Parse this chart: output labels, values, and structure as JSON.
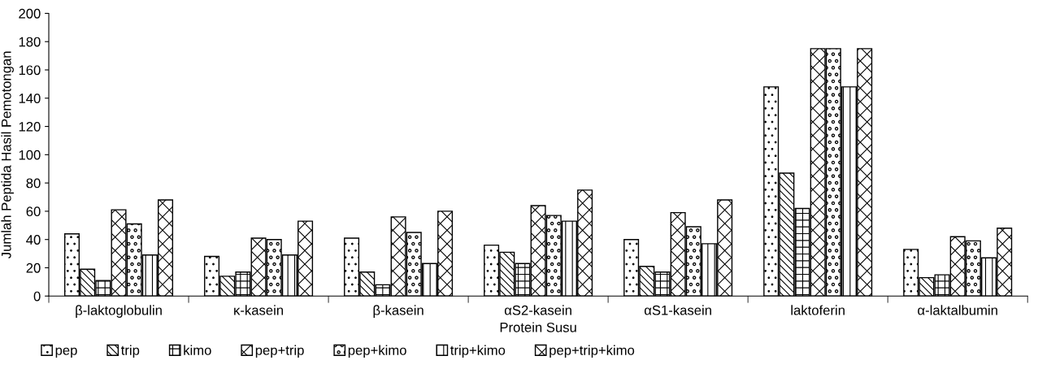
{
  "chart_data": {
    "type": "bar",
    "xlabel": "Protein Susu",
    "ylabel": "Jumlah Peptida Hasil Pemotongan",
    "categories": [
      "β-laktoglobulin",
      "κ-kasein",
      "β-kasein",
      "αS2-kasein",
      "αS1-kasein",
      "laktoferin",
      "α-laktalbumin"
    ],
    "series": [
      {
        "name": "pep",
        "color": "#000000",
        "values": [
          44,
          28,
          41,
          36,
          40,
          148,
          33
        ]
      },
      {
        "name": "trip",
        "color": "#000000",
        "values": [
          19,
          14,
          17,
          31,
          21,
          87,
          13
        ]
      },
      {
        "name": "kimo",
        "color": "#000000",
        "values": [
          11,
          17,
          8,
          23,
          17,
          62,
          15
        ]
      },
      {
        "name": "pep+trip",
        "color": "#000000",
        "values": [
          61,
          41,
          56,
          64,
          59,
          175,
          42
        ]
      },
      {
        "name": "pep+kimo",
        "color": "#000000",
        "values": [
          51,
          40,
          45,
          57,
          49,
          175,
          39
        ]
      },
      {
        "name": "trip+kimo",
        "color": "#000000",
        "values": [
          29,
          29,
          23,
          53,
          37,
          148,
          27
        ]
      },
      {
        "name": "pep+trip+kimo",
        "color": "#000000",
        "values": [
          68,
          53,
          60,
          75,
          68,
          175,
          48
        ]
      }
    ],
    "ylim": [
      0,
      200
    ],
    "yticks": [
      0,
      20,
      40,
      60,
      80,
      100,
      120,
      140,
      160,
      180,
      200
    ],
    "grid": false,
    "legend": "bottom"
  }
}
